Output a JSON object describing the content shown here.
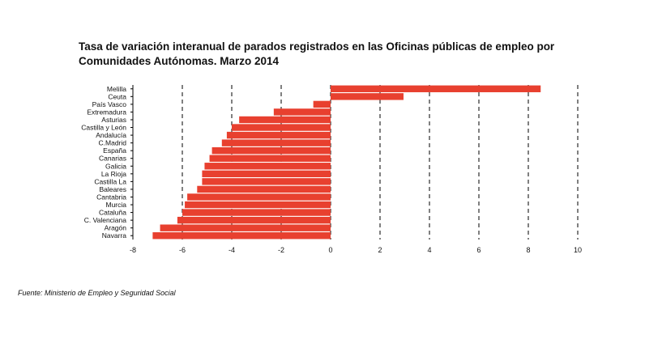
{
  "title_line1": "Tasa de variación interanual de parados registrados en las Oficinas públicas de empleo por",
  "title_line2": "Comunidades Autónomas.  Marzo 2014",
  "source": "Fuente: Ministerio de Empleo y Seguridad Social",
  "chart_data": {
    "type": "bar",
    "orientation": "horizontal",
    "title": "Tasa de variación interanual de parados registrados en las Oficinas públicas de empleo por Comunidades Autónomas.  Marzo 2014",
    "xlabel": "",
    "ylabel": "",
    "categories": [
      "Melilla",
      "Ceuta",
      "País Vasco",
      "Extremadura",
      "Asturias",
      "Castilla y León",
      "Andalucía",
      "C.Madrid",
      "España",
      "Canarias",
      "Galicia",
      "La Rioja",
      "Castilla La",
      "Baleares",
      "Cantabria",
      "Murcia",
      "Cataluña",
      "C. Valenciana",
      "Aragón",
      "Navarra"
    ],
    "values": [
      8.5,
      2.95,
      -0.7,
      -2.3,
      -3.7,
      -4.0,
      -4.2,
      -4.4,
      -4.8,
      -4.9,
      -5.1,
      -5.2,
      -5.2,
      -5.4,
      -5.8,
      -5.9,
      -6.0,
      -6.2,
      -6.9,
      -7.2
    ],
    "xlim": [
      -8,
      10
    ],
    "x_ticks": [
      -8,
      -6,
      -4,
      -2,
      0,
      2,
      4,
      6,
      8,
      10
    ],
    "bar_color": "#e8402f",
    "grid": "vertical dashed"
  }
}
